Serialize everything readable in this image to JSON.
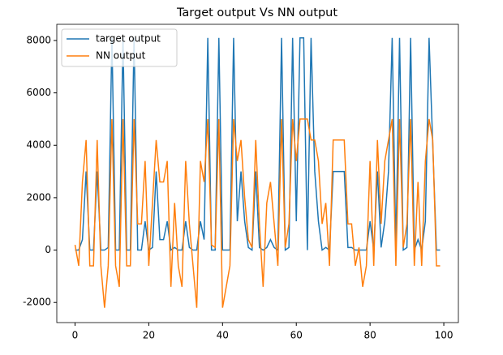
{
  "chart_data": {
    "type": "line",
    "title": "Target output Vs NN output",
    "x": [
      0,
      1,
      2,
      3,
      4,
      5,
      6,
      7,
      8,
      9,
      10,
      11,
      12,
      13,
      14,
      15,
      16,
      17,
      18,
      19,
      20,
      21,
      22,
      23,
      24,
      25,
      26,
      27,
      28,
      29,
      30,
      31,
      32,
      33,
      34,
      35,
      36,
      37,
      38,
      39,
      40,
      41,
      42,
      43,
      44,
      45,
      46,
      47,
      48,
      49,
      50,
      51,
      52,
      53,
      54,
      55,
      56,
      57,
      58,
      59,
      60,
      61,
      62,
      63,
      64,
      65,
      66,
      67,
      68,
      69,
      70,
      71,
      72,
      73,
      74,
      75,
      76,
      77,
      78,
      79,
      80,
      81,
      82,
      83,
      84,
      85,
      86,
      87,
      88,
      89,
      90,
      91,
      92,
      93,
      94,
      95,
      96,
      97,
      98,
      99
    ],
    "series": [
      {
        "name": "target output",
        "color": "#1f77b4",
        "values": [
          0,
          0,
          400,
          3000,
          0,
          0,
          3000,
          0,
          0,
          100,
          8100,
          0,
          0,
          8100,
          0,
          0,
          8100,
          0,
          0,
          1100,
          0,
          100,
          3000,
          400,
          400,
          1100,
          0,
          100,
          0,
          0,
          1100,
          100,
          0,
          0,
          1100,
          400,
          8100,
          0,
          0,
          8100,
          0,
          0,
          0,
          8100,
          1100,
          3000,
          1100,
          100,
          0,
          3000,
          100,
          0,
          100,
          400,
          100,
          0,
          8100,
          0,
          100,
          8100,
          1100,
          8100,
          8100,
          0,
          8100,
          3000,
          1100,
          0,
          100,
          0,
          3000,
          3000,
          3000,
          3000,
          100,
          100,
          0,
          0,
          0,
          0,
          1100,
          0,
          3000,
          100,
          1100,
          3000,
          8100,
          0,
          8100,
          0,
          100,
          8100,
          0,
          400,
          0,
          1100,
          8100,
          4000,
          0,
          0
        ]
      },
      {
        "name": "NN output",
        "color": "#ff7f0e",
        "values": [
          200,
          -600,
          2600,
          4200,
          -600,
          -600,
          4200,
          -600,
          -2200,
          -600,
          5000,
          -600,
          -1400,
          5000,
          -600,
          -600,
          5000,
          1000,
          1000,
          3400,
          -600,
          1800,
          4200,
          2600,
          2600,
          3400,
          -1400,
          1800,
          -600,
          -1400,
          3400,
          1000,
          -600,
          -2200,
          3400,
          2600,
          5000,
          200,
          100,
          5000,
          -2200,
          -1400,
          -600,
          5000,
          3400,
          4200,
          2000,
          400,
          100,
          4200,
          1000,
          -1400,
          1800,
          2600,
          1000,
          -600,
          5000,
          100,
          1000,
          5000,
          3400,
          5000,
          5000,
          5000,
          4200,
          4200,
          3400,
          1000,
          1800,
          -600,
          4200,
          4200,
          4200,
          4200,
          1000,
          1000,
          -600,
          100,
          -1400,
          -600,
          3400,
          -600,
          4200,
          1000,
          3400,
          4200,
          5000,
          -600,
          5000,
          100,
          1000,
          5000,
          -600,
          2600,
          -600,
          3400,
          5000,
          4200,
          -600,
          -600
        ]
      }
    ],
    "xlim": [
      -4.95,
      103.95
    ],
    "xticks": [
      0,
      20,
      40,
      60,
      80,
      100
    ],
    "ylim": [
      -2767,
      8617
    ],
    "yticks": [
      -2000,
      0,
      2000,
      4000,
      6000,
      8000
    ],
    "legend": "upper left"
  }
}
